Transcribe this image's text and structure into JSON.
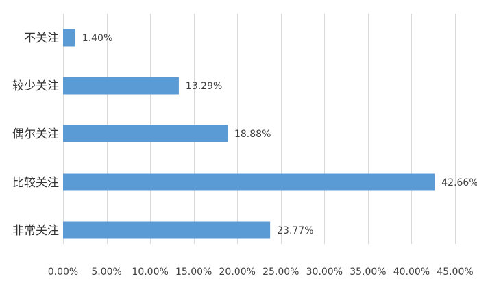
{
  "chart_data": {
    "type": "bar",
    "orientation": "horizontal",
    "title": "",
    "xlabel": "",
    "ylabel": "",
    "categories": [
      "不关注",
      "较少关注",
      "偶尔关注",
      "比较关注",
      "非常关注"
    ],
    "values": [
      1.4,
      13.29,
      18.88,
      42.66,
      23.77
    ],
    "data_labels": [
      "1.40%",
      "13.29%",
      "18.88%",
      "42.66%",
      "23.77%"
    ],
    "xlim": [
      0,
      45
    ],
    "x_ticks": [
      0,
      5,
      10,
      15,
      20,
      25,
      30,
      35,
      40,
      45
    ],
    "x_tick_labels": [
      "0.00%",
      "5.00%",
      "10.00%",
      "15.00%",
      "20.00%",
      "25.00%",
      "30.00%",
      "35.00%",
      "40.00%",
      "45.00%"
    ],
    "grid": "vertical",
    "legend": "none",
    "colors": {
      "bar": "#5b9bd5",
      "grid": "#d9d9d9",
      "text": "#404040"
    }
  }
}
